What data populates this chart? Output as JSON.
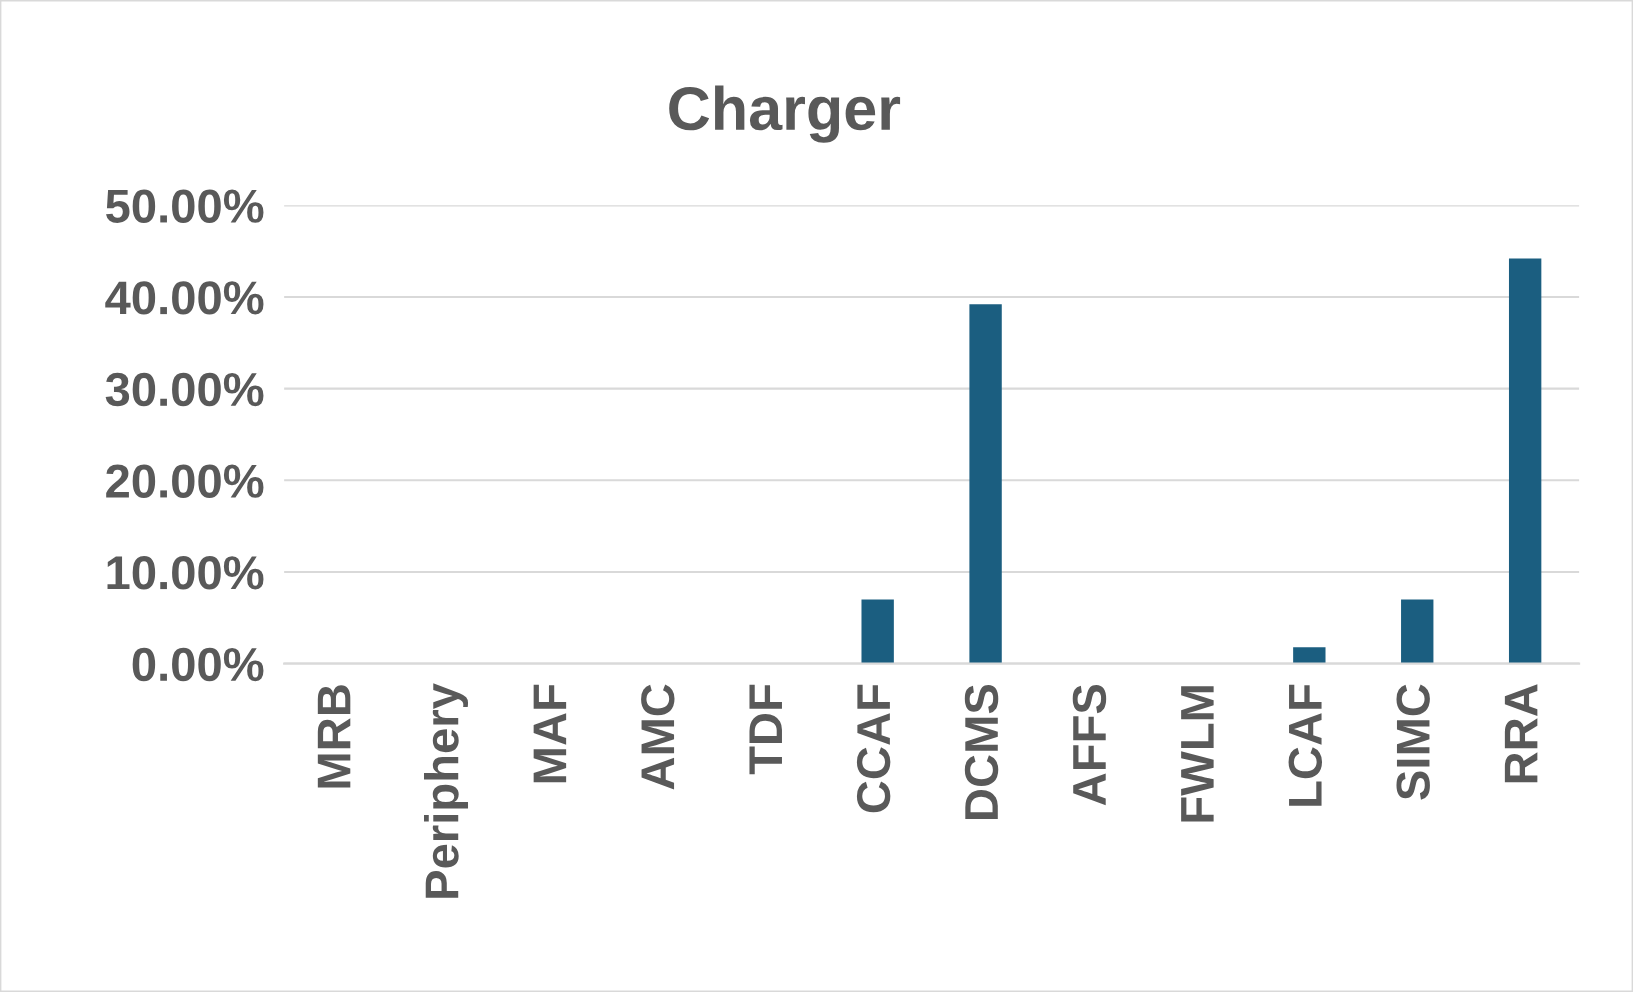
{
  "chart_data": {
    "type": "bar",
    "title": "Charger",
    "categories": [
      "MRB",
      "Periphery",
      "MAF",
      "AMC",
      "TDF",
      "CCAF",
      "DCMS",
      "AFFS",
      "FWLM",
      "LCAF",
      "SIMC",
      "RRA"
    ],
    "values": [
      0,
      0,
      0,
      0,
      0,
      7.0,
      39.2,
      0,
      0,
      1.8,
      7.0,
      44.2
    ],
    "color": "#1b5e80",
    "ylim": [
      0,
      50
    ],
    "yticks": [
      {
        "value": 0,
        "label": "0.00%"
      },
      {
        "value": 10,
        "label": "10.00%"
      },
      {
        "value": 20,
        "label": "20.00%"
      },
      {
        "value": 30,
        "label": "30.00%"
      },
      {
        "value": 40,
        "label": "40.00%"
      },
      {
        "value": 50,
        "label": "50.00%"
      }
    ],
    "grid": "y",
    "legend": false
  }
}
